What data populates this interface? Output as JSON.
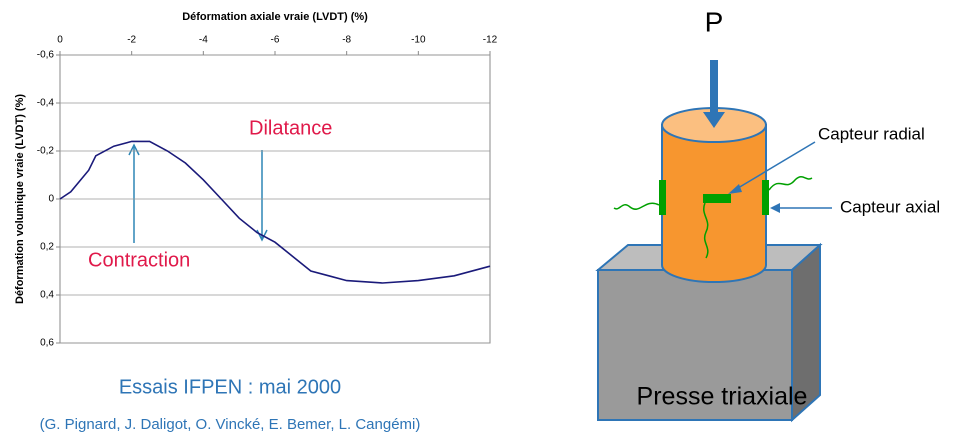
{
  "chart_data": {
    "type": "line",
    "x_label": "Déformation axiale vraie (LVDT) (%)",
    "y_label": "Déformation volumique vraie (LVDT) (%)",
    "x": [
      0,
      -0.3,
      -0.8,
      -1.0,
      -1.5,
      -2.0,
      -2.5,
      -3.0,
      -3.5,
      -4.0,
      -4.5,
      -5.0,
      -5.5,
      -6.0,
      -6.5,
      -7.0,
      -7.5,
      -8.0,
      -9.0,
      -10.0,
      -11.0,
      -12.0
    ],
    "values": [
      0,
      -0.03,
      -0.12,
      -0.18,
      -0.22,
      -0.24,
      -0.24,
      -0.2,
      -0.15,
      -0.08,
      0.0,
      0.08,
      0.14,
      0.18,
      0.24,
      0.3,
      0.32,
      0.34,
      0.35,
      0.34,
      0.32,
      0.28
    ],
    "color": "#1a1a7a",
    "xlim": [
      0,
      -12
    ],
    "xticks": [
      0,
      -2,
      -4,
      -6,
      -8,
      -10,
      -12
    ],
    "ylim": [
      -0.6,
      0.6
    ],
    "yticks": [
      {
        "value": -0.6,
        "label": "-0,6"
      },
      {
        "value": -0.4,
        "label": "-0,4"
      },
      {
        "value": -0.2,
        "label": "-0,2"
      },
      0,
      {
        "value": 0.2,
        "label": "0,2"
      },
      {
        "value": 0.4,
        "label": "0,4"
      },
      {
        "value": 0.6,
        "label": "0,6"
      }
    ],
    "grid": true,
    "annotations": [
      "Dilatance",
      "Contraction"
    ]
  },
  "caption": {
    "title": "Essais IFPEN : mai 2000",
    "authors": "(G. Pignard, J. Daligot, O. Vincké, E. Bemer, L. Cangémi)"
  },
  "diagram": {
    "force": "P",
    "radial_sensor": "Capteur radial",
    "axial_sensor": "Capteur axial",
    "title": "Presse triaxiale"
  }
}
